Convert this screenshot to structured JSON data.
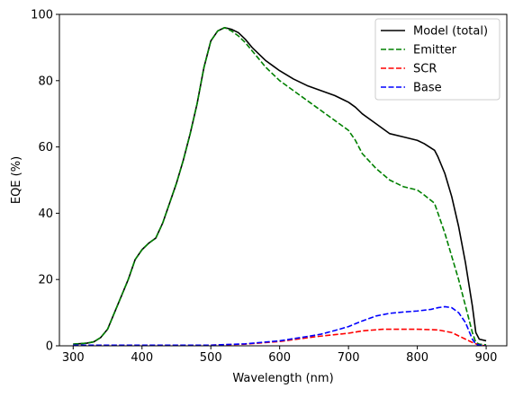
{
  "chart_data": {
    "type": "line",
    "xlabel": "Wavelength (nm)",
    "ylabel": "EQE (%)",
    "xlim": [
      280,
      930
    ],
    "ylim": [
      0,
      100
    ],
    "xticks": [
      300,
      400,
      500,
      600,
      700,
      800,
      900
    ],
    "yticks": [
      0,
      20,
      40,
      60,
      80,
      100
    ],
    "grid": false,
    "legend_position": "top-right",
    "series": [
      {
        "name": "Model (total)",
        "color": "#000000",
        "dash": "solid",
        "points": [
          [
            300,
            0.5
          ],
          [
            320,
            0.8
          ],
          [
            330,
            1.2
          ],
          [
            340,
            2.5
          ],
          [
            350,
            5
          ],
          [
            360,
            10
          ],
          [
            370,
            15
          ],
          [
            380,
            20
          ],
          [
            390,
            26
          ],
          [
            400,
            29
          ],
          [
            410,
            31
          ],
          [
            420,
            32.5
          ],
          [
            430,
            37
          ],
          [
            440,
            43
          ],
          [
            450,
            49
          ],
          [
            460,
            56
          ],
          [
            470,
            64
          ],
          [
            480,
            73
          ],
          [
            490,
            84
          ],
          [
            500,
            92
          ],
          [
            510,
            95
          ],
          [
            520,
            96
          ],
          [
            530,
            95.5
          ],
          [
            540,
            94.5
          ],
          [
            550,
            92.5
          ],
          [
            560,
            90
          ],
          [
            570,
            88
          ],
          [
            580,
            86
          ],
          [
            590,
            84.5
          ],
          [
            600,
            83
          ],
          [
            620,
            80.5
          ],
          [
            640,
            78.5
          ],
          [
            660,
            77
          ],
          [
            680,
            75.5
          ],
          [
            700,
            73.5
          ],
          [
            710,
            72
          ],
          [
            720,
            70
          ],
          [
            740,
            67
          ],
          [
            760,
            64
          ],
          [
            780,
            63
          ],
          [
            800,
            62
          ],
          [
            810,
            61
          ],
          [
            825,
            59
          ],
          [
            830,
            57
          ],
          [
            840,
            52
          ],
          [
            850,
            45
          ],
          [
            860,
            36
          ],
          [
            870,
            25
          ],
          [
            880,
            12
          ],
          [
            885,
            4
          ],
          [
            890,
            2
          ],
          [
            900,
            1.5
          ]
        ]
      },
      {
        "name": "Emitter",
        "color": "#008000",
        "dash": "dashed",
        "points": [
          [
            300,
            0.5
          ],
          [
            320,
            0.8
          ],
          [
            330,
            1.2
          ],
          [
            340,
            2.5
          ],
          [
            350,
            5
          ],
          [
            360,
            10
          ],
          [
            370,
            15
          ],
          [
            380,
            20
          ],
          [
            390,
            26
          ],
          [
            400,
            29
          ],
          [
            410,
            31
          ],
          [
            420,
            32.5
          ],
          [
            430,
            37
          ],
          [
            440,
            43
          ],
          [
            450,
            49
          ],
          [
            460,
            56
          ],
          [
            470,
            64
          ],
          [
            480,
            73
          ],
          [
            490,
            84
          ],
          [
            500,
            92
          ],
          [
            510,
            95
          ],
          [
            520,
            96
          ],
          [
            530,
            95
          ],
          [
            540,
            93.5
          ],
          [
            550,
            91.5
          ],
          [
            560,
            89
          ],
          [
            570,
            86.5
          ],
          [
            580,
            84
          ],
          [
            590,
            82
          ],
          [
            600,
            80
          ],
          [
            620,
            77
          ],
          [
            640,
            74
          ],
          [
            660,
            71
          ],
          [
            680,
            68
          ],
          [
            700,
            65
          ],
          [
            710,
            62
          ],
          [
            720,
            58
          ],
          [
            740,
            53.5
          ],
          [
            760,
            50
          ],
          [
            780,
            48
          ],
          [
            800,
            47
          ],
          [
            810,
            45.5
          ],
          [
            825,
            43
          ],
          [
            830,
            40
          ],
          [
            840,
            34
          ],
          [
            850,
            27
          ],
          [
            860,
            20
          ],
          [
            870,
            12
          ],
          [
            880,
            4
          ],
          [
            885,
            1
          ],
          [
            890,
            0.5
          ],
          [
            900,
            0.3
          ]
        ]
      },
      {
        "name": "SCR",
        "color": "#ff0000",
        "dash": "dashed",
        "points": [
          [
            300,
            0.2
          ],
          [
            400,
            0.2
          ],
          [
            500,
            0.2
          ],
          [
            550,
            0.5
          ],
          [
            600,
            1.3
          ],
          [
            650,
            2.7
          ],
          [
            700,
            3.8
          ],
          [
            720,
            4.5
          ],
          [
            750,
            5
          ],
          [
            800,
            5
          ],
          [
            830,
            4.8
          ],
          [
            850,
            4
          ],
          [
            870,
            2
          ],
          [
            880,
            1
          ],
          [
            890,
            0.2
          ],
          [
            900,
            0
          ]
        ]
      },
      {
        "name": "Base",
        "color": "#0000ff",
        "dash": "dashed",
        "points": [
          [
            300,
            0.2
          ],
          [
            400,
            0.2
          ],
          [
            500,
            0.2
          ],
          [
            550,
            0.6
          ],
          [
            600,
            1.5
          ],
          [
            640,
            2.8
          ],
          [
            660,
            3.5
          ],
          [
            680,
            4.6
          ],
          [
            700,
            5.8
          ],
          [
            720,
            7.5
          ],
          [
            740,
            9
          ],
          [
            760,
            9.8
          ],
          [
            780,
            10.2
          ],
          [
            800,
            10.5
          ],
          [
            820,
            11
          ],
          [
            830,
            11.5
          ],
          [
            840,
            11.8
          ],
          [
            850,
            11.5
          ],
          [
            860,
            10
          ],
          [
            870,
            7
          ],
          [
            880,
            2
          ],
          [
            885,
            0.5
          ],
          [
            890,
            0.2
          ],
          [
            900,
            0
          ]
        ]
      }
    ]
  }
}
